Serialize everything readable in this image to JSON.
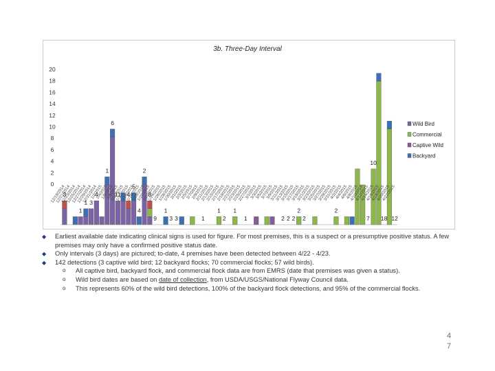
{
  "chart_data": {
    "type": "bar",
    "stacked": true,
    "title": "3b. Three-Day Interval",
    "ylim": [
      0,
      20
    ],
    "y_ticks": [
      0,
      2,
      4,
      6,
      8,
      10,
      12,
      14,
      16,
      18,
      20
    ],
    "grid": false,
    "legend_position": "right",
    "categories": [
      "12/19/2014",
      "12/21/2014",
      "12/23/2014",
      "12/25/2014",
      "12/27/2014",
      "12/29/2014",
      "12/31/2014",
      "1/2/2015",
      "1/4/2015",
      "1/6/2015",
      "1/8/2015",
      "1/10/2015",
      "1/12/2015",
      "1/14/2015",
      "1/16/2015",
      "1/18/2015",
      "1/20/2015",
      "1/22/2015",
      "1/24/2015",
      "1/26/2015",
      "1/28/2015",
      "1/30/2015",
      "2/1/2015",
      "2/3/2015",
      "2/5/2015",
      "2/7/2015",
      "2/9/2015",
      "2/11/2015",
      "2/13/2015",
      "2/15/2015",
      "2/17/2015",
      "2/19/2015",
      "2/21/2015",
      "2/23/2015",
      "2/25/2015",
      "2/27/2015",
      "3/1/2015",
      "3/3/2015",
      "3/5/2015",
      "3/7/2015",
      "3/9/2015",
      "3/11/2015",
      "3/13/2015",
      "3/15/2015",
      "3/17/2015",
      "3/19/2015",
      "3/21/2015",
      "3/23/2015",
      "3/25/2015",
      "3/27/2015",
      "3/29/2015",
      "3/31/2015",
      "4/2/2015",
      "4/4/2015",
      "4/6/2015",
      "4/8/2015",
      "4/10/2015",
      "4/12/2015",
      "4/14/2015",
      "4/16/2015",
      "4/18/2015",
      "4/20/2015",
      "4/22/2015"
    ],
    "series": [
      {
        "name": "Wild Bird",
        "color": "#7b63a6",
        "values": [
          2,
          0,
          0,
          1,
          1,
          2,
          3,
          1,
          5,
          11,
          3,
          3,
          2,
          3,
          0,
          5,
          1,
          0,
          0,
          0,
          0,
          0,
          0,
          0,
          0,
          0,
          0,
          0,
          0,
          0,
          0,
          0,
          0,
          0,
          0,
          0,
          0,
          0,
          0,
          0,
          0,
          0,
          0,
          0,
          0,
          0,
          0,
          0,
          0,
          0,
          0,
          0,
          0,
          0,
          0,
          0,
          0,
          0,
          0,
          0,
          0,
          0,
          0
        ]
      },
      {
        "name": "Commercial",
        "color": "#8db74a",
        "values": [
          0,
          0,
          0,
          0,
          0,
          0,
          0,
          0,
          0,
          0,
          0,
          0,
          0,
          0,
          0,
          0,
          1,
          0,
          0,
          0,
          0,
          0,
          0,
          0,
          1,
          0,
          0,
          0,
          0,
          1,
          0,
          0,
          1,
          0,
          0,
          0,
          0,
          0,
          1,
          0,
          0,
          0,
          0,
          0,
          1,
          0,
          0,
          1,
          0,
          0,
          0,
          1,
          0,
          1,
          0,
          7,
          5,
          0,
          7,
          18,
          0,
          12,
          0
        ]
      },
      {
        "name": "Captive Wild",
        "color": "#8b5a9c",
        "values": [
          0,
          0,
          0,
          0,
          0,
          0,
          0,
          0,
          0,
          0,
          0,
          0,
          0,
          0,
          0,
          0,
          0,
          0,
          0,
          0,
          0,
          0,
          0,
          0,
          0,
          0,
          0,
          0,
          0,
          0,
          0,
          0,
          0,
          0,
          0,
          0,
          1,
          0,
          0,
          1,
          0,
          0,
          0,
          0,
          0,
          0,
          0,
          0,
          0,
          0,
          0,
          0,
          0,
          0,
          0,
          0,
          0,
          0,
          0,
          0,
          0,
          0,
          0
        ]
      },
      {
        "name": "Backyard",
        "color": "#3d6fb6",
        "values": [
          0,
          0,
          1,
          0,
          1,
          0,
          0,
          0,
          1,
          1,
          0,
          1,
          0,
          1,
          1,
          1,
          0,
          0,
          0,
          1,
          0,
          0,
          1,
          0,
          0,
          0,
          0,
          0,
          0,
          0,
          0,
          0,
          0,
          0,
          0,
          0,
          0,
          0,
          0,
          0,
          0,
          0,
          0,
          0,
          0,
          0,
          0,
          0,
          0,
          0,
          0,
          0,
          0,
          0,
          1,
          0,
          0,
          0,
          0,
          1,
          0,
          1,
          0
        ]
      },
      {
        "name": "",
        "color": "#c0504d",
        "values": [
          1,
          0,
          0,
          0,
          0,
          0,
          0,
          0,
          0,
          0,
          0,
          0,
          1,
          0,
          0,
          0,
          1,
          0,
          0,
          0,
          0,
          0,
          0,
          0,
          0,
          0,
          0,
          0,
          0,
          0,
          0,
          0,
          0,
          0,
          0,
          0,
          0,
          0,
          0,
          0,
          0,
          0,
          0,
          0,
          0,
          0,
          0,
          0,
          0,
          0,
          0,
          0,
          0,
          0,
          0,
          0,
          0,
          0,
          0,
          0,
          0,
          0,
          0
        ]
      }
    ],
    "data_labels": [
      {
        "label": "3",
        "category": "12/19/2014"
      },
      {
        "label": "1",
        "category": "12/25/2014"
      },
      {
        "label": "1",
        "category": "12/27/2014"
      },
      {
        "label": "3",
        "category": "12/29/2014"
      },
      {
        "label": "4",
        "category": "12/31/2014"
      },
      {
        "label": "1",
        "category": "1/4/2015"
      },
      {
        "label": "6",
        "category": "1/6/2015"
      },
      {
        "label": "11",
        "category": "1/8/2015"
      },
      {
        "label": "4",
        "category": "1/12/2015"
      },
      {
        "label": "5",
        "category": "1/14/2015"
      },
      {
        "label": "4",
        "category": "1/16/2015"
      },
      {
        "label": "2",
        "category": "1/18/2015"
      },
      {
        "label": "8",
        "category": "1/20/2015"
      },
      {
        "label": "9",
        "category": "1/22/2015"
      },
      {
        "label": "1",
        "category": "1/26/2015"
      },
      {
        "label": "3",
        "category": "1/28/2015"
      },
      {
        "label": "3",
        "category": "1/30/2015"
      },
      {
        "label": "1",
        "category": "2/9/2015"
      },
      {
        "label": "1",
        "category": "2/15/2015"
      },
      {
        "label": "2",
        "category": "2/17/2015"
      },
      {
        "label": "1",
        "category": "2/21/2015"
      },
      {
        "label": "1",
        "category": "2/25/2015"
      },
      {
        "label": "2",
        "category": "3/11/2015"
      },
      {
        "label": "2",
        "category": "3/13/2015"
      },
      {
        "label": "2",
        "category": "3/15/2015"
      },
      {
        "label": "2",
        "category": "3/17/2015"
      },
      {
        "label": "2",
        "category": "3/19/2015"
      },
      {
        "label": "2",
        "category": "3/31/2015"
      },
      {
        "label": "7",
        "category": "4/12/2015"
      },
      {
        "label": "10",
        "category": "4/14/2015"
      },
      {
        "label": "18",
        "category": "4/18/2015"
      },
      {
        "label": "12",
        "category": "4/22/2015"
      }
    ]
  },
  "notes": [
    {
      "text": "Earliest available date indicating clinical signs is used for figure. For most premises, this is a suspect or a presumptive positive status. A few premises may only have a confirmed positive status date."
    },
    {
      "text": "Only intervals (3 days) are pictured; to-date, 4 premises have been detected between 4/22 - 4/23."
    },
    {
      "text": "142 detections (3 captive wild bird; 12 backyard flocks; 70 commercial flocks; 57 wild birds)."
    }
  ],
  "sub_notes": {
    "a": {
      "text": "All captive bird, backyard flock, and commercial flock data are from EMRS (date that premises was given a status)."
    },
    "b": {
      "pre": "Wild bird dates are based on ",
      "link": "date of collection",
      "post": ", from USDA/USGS/National Flyway Council data."
    },
    "c": {
      "text": "This represents 60% of the wild bird detections, 100% of the backyard flock detections, and 95% of the commercial flocks."
    }
  },
  "page_number": "47",
  "icons": {
    "bullet": "diamond-bullet-icon",
    "sub_bullet": "circle-bullet-icon"
  }
}
